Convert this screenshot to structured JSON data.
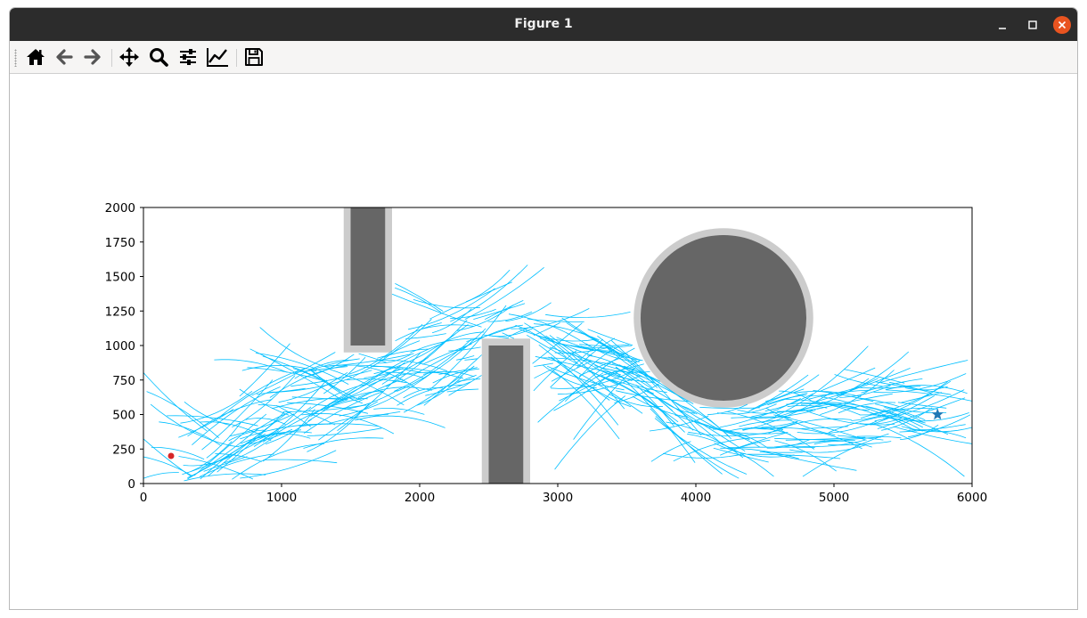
{
  "window": {
    "title": "Figure 1"
  },
  "toolbar": {
    "buttons": [
      {
        "name": "home",
        "icon": "home-icon"
      },
      {
        "name": "back",
        "icon": "arrow-left-icon"
      },
      {
        "name": "forward",
        "icon": "arrow-right-icon"
      },
      {
        "name": "pan",
        "icon": "move-icon"
      },
      {
        "name": "zoom",
        "icon": "magnifier-icon"
      },
      {
        "name": "configure-subplots",
        "icon": "sliders-icon"
      },
      {
        "name": "edit-axes",
        "icon": "line-chart-icon"
      },
      {
        "name": "save",
        "icon": "floppy-disk-icon"
      }
    ]
  },
  "chart_data": {
    "type": "scatter",
    "title": "",
    "xlabel": "",
    "ylabel": "",
    "xlim": [
      0,
      6000
    ],
    "ylim": [
      0,
      2000
    ],
    "xticks": [
      "0",
      "1000",
      "2000",
      "3000",
      "4000",
      "5000",
      "6000"
    ],
    "yticks": [
      "0",
      "250",
      "500",
      "750",
      "1000",
      "1250",
      "1500",
      "1750",
      "2000"
    ],
    "grid": false,
    "start": {
      "x": 200,
      "y": 200,
      "color": "#d62728"
    },
    "goal": {
      "x": 5750,
      "y": 500,
      "color": "#1f77b4"
    },
    "tree_color": "#00bfff",
    "obstacles": [
      {
        "shape": "rect",
        "x0": 1500,
        "x1": 1750,
        "y0": 1000,
        "y1": 2000,
        "margin": 50
      },
      {
        "shape": "rect",
        "x0": 2500,
        "x1": 2750,
        "y0": 0,
        "y1": 1000,
        "margin": 50
      },
      {
        "shape": "circle",
        "cx": 4200,
        "cy": 1200,
        "r": 600,
        "margin": 50
      }
    ],
    "obstacle_color": "#666666",
    "margin_color": "#cccccc",
    "tree_corridor": [
      [
        200,
        200
      ],
      [
        400,
        100
      ],
      [
        800,
        400
      ],
      [
        1200,
        550
      ],
      [
        1600,
        700
      ],
      [
        2000,
        850
      ],
      [
        2400,
        1050
      ],
      [
        2800,
        1100
      ],
      [
        3200,
        950
      ],
      [
        3600,
        750
      ],
      [
        4000,
        500
      ],
      [
        4400,
        420
      ],
      [
        4800,
        480
      ],
      [
        5200,
        520
      ],
      [
        5600,
        520
      ]
    ]
  }
}
